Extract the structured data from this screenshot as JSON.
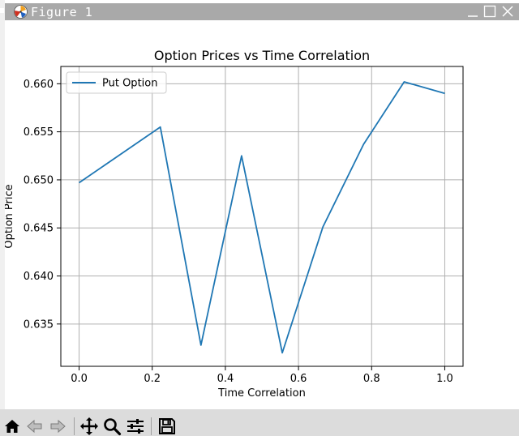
{
  "window": {
    "title": "Figure 1"
  },
  "toolbar": {
    "buttons": [
      "home-icon",
      "back-arrow-icon",
      "forward-arrow-icon",
      "pan-icon",
      "zoom-icon",
      "configure-subplots-icon",
      "save-icon"
    ]
  },
  "colors": {
    "titlebar": "#a9a9a9",
    "toolbar": "#dcdcdc",
    "series": "#1f77b4",
    "grid": "#b0b0b0"
  },
  "chart_data": {
    "type": "line",
    "title": "Option Prices vs Time Correlation",
    "xlabel": "Time Correlation",
    "ylabel": "Option Price",
    "xlim": [
      -0.05,
      1.05
    ],
    "ylim": [
      0.6306,
      0.6618
    ],
    "xticks": [
      0.0,
      0.2,
      0.4,
      0.6,
      0.8,
      1.0
    ],
    "xtick_labels": [
      "0.0",
      "0.2",
      "0.4",
      "0.6",
      "0.8",
      "1.0"
    ],
    "yticks": [
      0.635,
      0.64,
      0.645,
      0.65,
      0.655,
      0.66
    ],
    "ytick_labels": [
      "0.635",
      "0.640",
      "0.645",
      "0.650",
      "0.655",
      "0.660"
    ],
    "grid": true,
    "legend_position": "top-left",
    "series": [
      {
        "name": "Put Option",
        "x": [
          0.0,
          0.1111,
          0.2222,
          0.3333,
          0.4444,
          0.5556,
          0.6667,
          0.7778,
          0.8889,
          1.0
        ],
        "y": [
          0.6497,
          0.6526,
          0.6555,
          0.6328,
          0.6525,
          0.632,
          0.6451,
          0.6537,
          0.6602,
          0.659
        ]
      }
    ]
  }
}
